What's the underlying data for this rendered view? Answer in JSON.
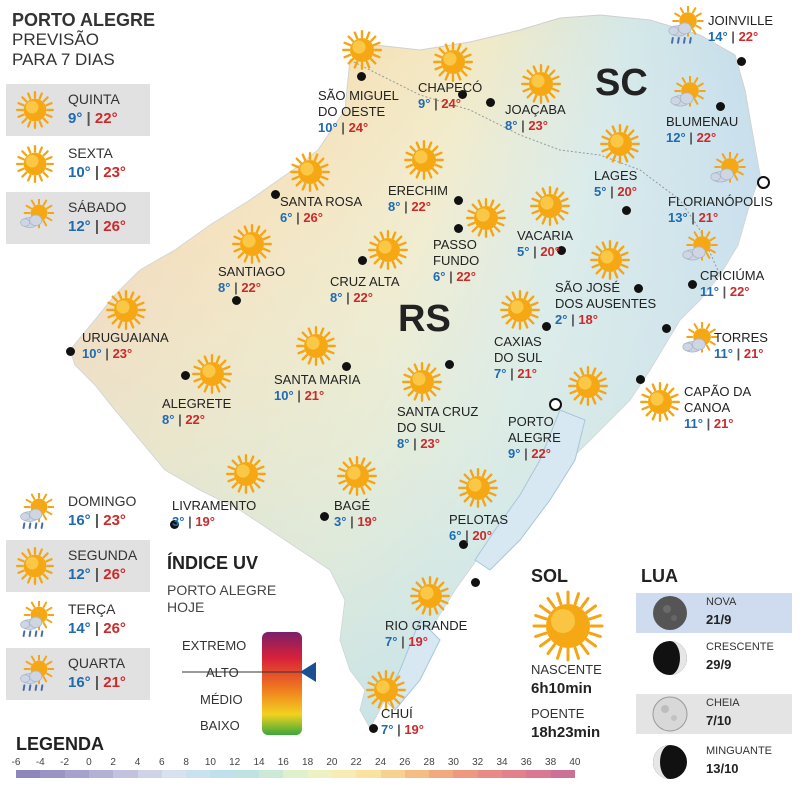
{
  "header": {
    "line1": "PORTO ALEGRE",
    "line2": "PREVISÃO",
    "line3": "PARA 7 DIAS"
  },
  "forecast": [
    {
      "day": "QUINTA",
      "min": "9°",
      "max": "22°",
      "icon": "sun-icon"
    },
    {
      "day": "SEXTA",
      "min": "10°",
      "max": "23°",
      "icon": "sun-icon"
    },
    {
      "day": "SÁBADO",
      "min": "12°",
      "max": "26°",
      "icon": "partly-cloudy-icon"
    },
    {
      "day": "DOMINGO",
      "min": "16°",
      "max": "23°",
      "icon": "rain-sun-icon"
    },
    {
      "day": "SEGUNDA",
      "min": "12°",
      "max": "26°",
      "icon": "sun-icon"
    },
    {
      "day": "TERÇA",
      "min": "14°",
      "max": "26°",
      "icon": "rain-sun-icon"
    },
    {
      "day": "QUARTA",
      "min": "16°",
      "max": "21°",
      "icon": "rain-sun-icon"
    }
  ],
  "states": {
    "sc": "SC",
    "rs": "RS"
  },
  "cities": [
    {
      "l1": "SÃO MIGUEL",
      "l2": "DO OESTE",
      "min": "10°",
      "max": "24°"
    },
    {
      "l1": "CHAPECÓ",
      "l2": "",
      "min": "9°",
      "max": "24°"
    },
    {
      "l1": "JOAÇABA",
      "l2": "",
      "min": "8°",
      "max": "23°"
    },
    {
      "l1": "JOINVILLE",
      "l2": "",
      "min": "14°",
      "max": "22°"
    },
    {
      "l1": "BLUMENAU",
      "l2": "",
      "min": "12°",
      "max": "22°"
    },
    {
      "l1": "LAGES",
      "l2": "",
      "min": "5°",
      "max": "20°"
    },
    {
      "l1": "FLORIANÓPOLIS",
      "l2": "",
      "min": "13°",
      "max": "21°"
    },
    {
      "l1": "SANTA ROSA",
      "l2": "",
      "min": "6°",
      "max": "26°"
    },
    {
      "l1": "ERECHIM",
      "l2": "",
      "min": "8°",
      "max": "22°"
    },
    {
      "l1": "PASSO",
      "l2": "FUNDO",
      "min": "6°",
      "max": "22°"
    },
    {
      "l1": "VACARIA",
      "l2": "",
      "min": "5°",
      "max": "20°"
    },
    {
      "l1": "CRICIÚMA",
      "l2": "",
      "min": "11°",
      "max": "22°"
    },
    {
      "l1": "SANTIAGO",
      "l2": "",
      "min": "8°",
      "max": "22°"
    },
    {
      "l1": "CRUZ ALTA",
      "l2": "",
      "min": "8°",
      "max": "22°"
    },
    {
      "l1": "SÃO JOSÉ",
      "l2": "DOS AUSENTES",
      "min": "2°",
      "max": "18°"
    },
    {
      "l1": "TORRES",
      "l2": "",
      "min": "11°",
      "max": "21°"
    },
    {
      "l1": "URUGUAIANA",
      "l2": "",
      "min": "10°",
      "max": "23°"
    },
    {
      "l1": "CAXIAS",
      "l2": "DO SUL",
      "min": "7°",
      "max": "21°"
    },
    {
      "l1": "SANTA MARIA",
      "l2": "",
      "min": "10°",
      "max": "21°"
    },
    {
      "l1": "ALEGRETE",
      "l2": "",
      "min": "8°",
      "max": "22°"
    },
    {
      "l1": "SANTA CRUZ",
      "l2": "DO SUL",
      "min": "8°",
      "max": "23°"
    },
    {
      "l1": "CAPÃO DA",
      "l2": "CANOA",
      "min": "11°",
      "max": "21°"
    },
    {
      "l1": "PORTO",
      "l2": "ALEGRE",
      "min": "9°",
      "max": "22°"
    },
    {
      "l1": "LIVRAMENTO",
      "l2": "",
      "min": "3°",
      "max": "19°"
    },
    {
      "l1": "BAGÉ",
      "l2": "",
      "min": "3°",
      "max": "19°"
    },
    {
      "l1": "PELOTAS",
      "l2": "",
      "min": "6°",
      "max": "20°"
    },
    {
      "l1": "RIO GRANDE",
      "l2": "",
      "min": "7°",
      "max": "19°"
    },
    {
      "l1": "CHUÍ",
      "l2": "",
      "min": "7°",
      "max": "19°"
    }
  ],
  "uv": {
    "title": "ÍNDICE UV",
    "sub1": "PORTO ALEGRE",
    "sub2": "HOJE",
    "levels": [
      "EXTREMO",
      "ALTO",
      "MÉDIO",
      "BAIXO"
    ],
    "current_level": "ALTO"
  },
  "sol": {
    "title": "SOL",
    "rise_label": "NASCENTE",
    "rise": "6h10min",
    "set_label": "POENTE",
    "set": "18h23min"
  },
  "lua": {
    "title": "LUA",
    "phases": [
      {
        "name": "NOVA",
        "date": "21/9",
        "icon": "new-moon-icon"
      },
      {
        "name": "CRESCENTE",
        "date": "29/9",
        "icon": "waxing-moon-icon"
      },
      {
        "name": "CHEIA",
        "date": "7/10",
        "icon": "full-moon-icon"
      },
      {
        "name": "MINGUANTE",
        "date": "13/10",
        "icon": "waning-moon-icon"
      }
    ]
  },
  "legend": {
    "title": "LEGENDA",
    "values": [
      "-6",
      "-4",
      "-2",
      "0",
      "2",
      "4",
      "6",
      "8",
      "10",
      "12",
      "14",
      "16",
      "18",
      "20",
      "22",
      "24",
      "26",
      "28",
      "30",
      "32",
      "34",
      "36",
      "38",
      "40"
    ],
    "colors": [
      "#8d86bd",
      "#9a94c5",
      "#a6a2cd",
      "#b4b1d6",
      "#c2c2df",
      "#cfd3e8",
      "#d8e1ef",
      "#c9e1f0",
      "#bfe0ec",
      "#bfe3e3",
      "#cce9d8",
      "#def0cc",
      "#eef2c2",
      "#f7ecb3",
      "#fae2a0",
      "#f8d18e",
      "#f5bd83",
      "#f2a97e",
      "#ee9880",
      "#e88a85",
      "#e2808b",
      "#d87891",
      "#cc7096"
    ]
  }
}
